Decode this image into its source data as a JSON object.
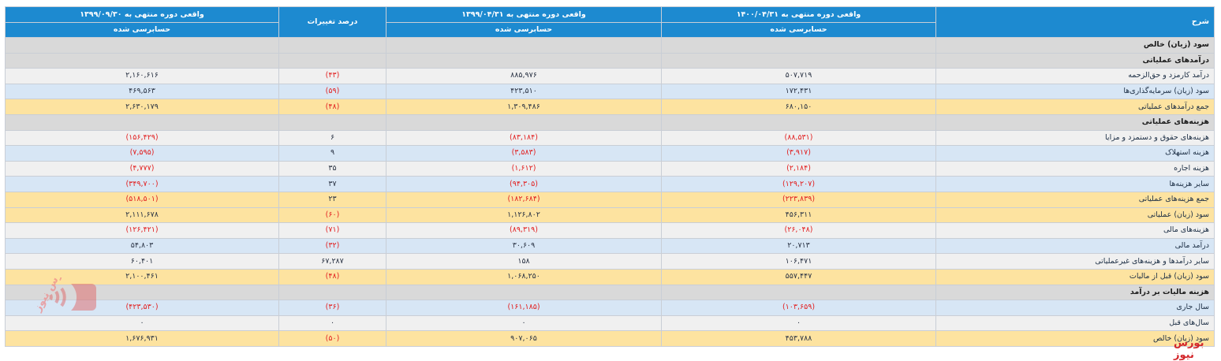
{
  "header": {
    "col_sharh": "شرح",
    "col_1400": "واقعی دوره منتهی به ۱۴۰۰/۰۴/۳۱",
    "col_1399a": "واقعی دوره منتهی به ۱۳۹۹/۰۴/۳۱",
    "col_change": "درصد تغییرات",
    "col_1399b": "واقعی دوره منتهی به ۱۳۹۹/۰۹/۳۰",
    "audited": "حسابرسی شده"
  },
  "rows": [
    {
      "type": "sec",
      "desc": "سود (زیان) خالص",
      "v1": "",
      "v2": "",
      "pct": "",
      "v3": ""
    },
    {
      "type": "sec",
      "desc": "درآمدهای عملیاتی",
      "v1": "",
      "v2": "",
      "pct": "",
      "v3": ""
    },
    {
      "type": "odd",
      "desc": "درآمد کارمزد و حق‌الزحمه",
      "v1": "۵۰۷,۷۱۹",
      "v2": "۸۸۵,۹۷۶",
      "pct": "(۴۳)",
      "v3": "۲,۱۶۰,۶۱۶"
    },
    {
      "type": "even",
      "desc": "سود (زیان) سرمایه‌گذاری‌ها",
      "v1": "۱۷۲,۴۳۱",
      "v2": "۴۲۳,۵۱۰",
      "pct": "(۵۹)",
      "v3": "۴۶۹,۵۶۳"
    },
    {
      "type": "total",
      "desc": "جمع درآمدهای عملیاتی",
      "v1": "۶۸۰,۱۵۰",
      "v2": "۱,۳۰۹,۴۸۶",
      "pct": "(۴۸)",
      "v3": "۲,۶۳۰,۱۷۹"
    },
    {
      "type": "sec",
      "desc": "هزینه‌های عملیاتی",
      "v1": "",
      "v2": "",
      "pct": "",
      "v3": ""
    },
    {
      "type": "odd",
      "desc": "هزینه‌های حقوق و دستمزد و مزایا",
      "v1": "(۸۸,۵۳۱)",
      "v2": "(۸۳,۱۸۴)",
      "pct": "۶",
      "v3": "(۱۵۶,۴۲۹)"
    },
    {
      "type": "even",
      "desc": "هزینه استهلاک",
      "v1": "(۳,۹۱۷)",
      "v2": "(۳,۵۸۳)",
      "pct": "۹",
      "v3": "(۷,۵۹۵)"
    },
    {
      "type": "odd",
      "desc": "هزینه اجاره",
      "v1": "(۲,۱۸۴)",
      "v2": "(۱,۶۱۲)",
      "pct": "۳۵",
      "v3": "(۴,۷۷۷)"
    },
    {
      "type": "even",
      "desc": "سایر هزینه‌ها",
      "v1": "(۱۲۹,۲۰۷)",
      "v2": "(۹۴,۳۰۵)",
      "pct": "۳۷",
      "v3": "(۳۴۹,۷۰۰)"
    },
    {
      "type": "total",
      "desc": "جمع هزینه‌های عملیاتی",
      "v1": "(۲۲۳,۸۳۹)",
      "v2": "(۱۸۲,۶۸۴)",
      "pct": "۲۳",
      "v3": "(۵۱۸,۵۰۱)"
    },
    {
      "type": "total",
      "desc": "سود (زیان) عملیاتی",
      "v1": "۴۵۶,۳۱۱",
      "v2": "۱,۱۲۶,۸۰۲",
      "pct": "(۶۰)",
      "v3": "۲,۱۱۱,۶۷۸"
    },
    {
      "type": "odd",
      "desc": "هزینه‌های مالی",
      "v1": "(۲۶,۰۴۸)",
      "v2": "(۸۹,۳۱۹)",
      "pct": "(۷۱)",
      "v3": "(۱۲۶,۴۲۱)"
    },
    {
      "type": "even",
      "desc": "درآمد مالی",
      "v1": "۲۰,۷۱۳",
      "v2": "۳۰,۶۰۹",
      "pct": "(۳۲)",
      "v3": "۵۴,۸۰۳"
    },
    {
      "type": "odd",
      "desc": "سایر درآمدها و هزینه‌های غیرعملیاتی",
      "v1": "۱۰۶,۴۷۱",
      "v2": "۱۵۸",
      "pct": "۶۷,۲۸۷",
      "v3": "۶۰,۴۰۱"
    },
    {
      "type": "total",
      "desc": "سود (زیان) قبل از مالیات",
      "v1": "۵۵۷,۴۴۷",
      "v2": "۱,۰۶۸,۲۵۰",
      "pct": "(۴۸)",
      "v3": "۲,۱۰۰,۴۶۱"
    },
    {
      "type": "sec",
      "desc": "هزینه مالیات بر درآمد",
      "v1": "",
      "v2": "",
      "pct": "",
      "v3": ""
    },
    {
      "type": "even",
      "desc": "سال جاری",
      "v1": "(۱۰۳,۶۵۹)",
      "v2": "(۱۶۱,۱۸۵)",
      "pct": "(۳۶)",
      "v3": "(۴۲۳,۵۳۰)"
    },
    {
      "type": "odd",
      "desc": "سال‌های قبل",
      "v1": "۰",
      "v2": "۰",
      "pct": "۰",
      "v3": "۰"
    },
    {
      "type": "total",
      "desc": "سود (زیان) خالص",
      "v1": "۴۵۳,۷۸۸",
      "v2": "۹۰۷,۰۶۵",
      "pct": "(۵۰)",
      "v3": "۱,۶۷۶,۹۳۱"
    }
  ],
  "logo_text": "بورس نیوز",
  "watermark": "بورس نیوز"
}
